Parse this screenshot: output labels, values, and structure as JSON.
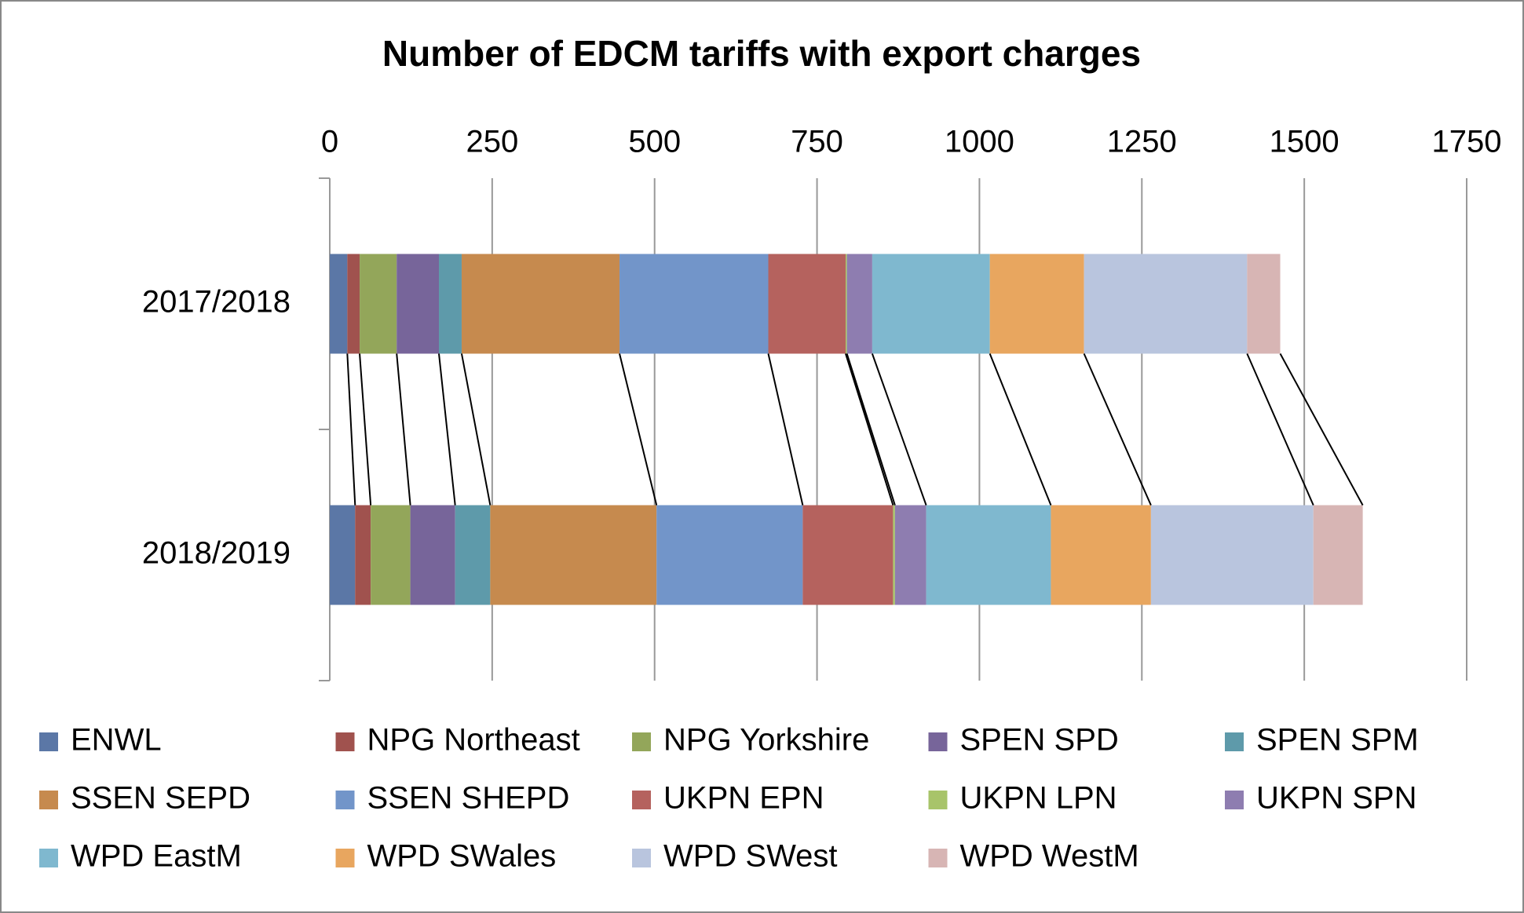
{
  "chart_data": {
    "type": "stacked-bar-horizontal",
    "title": "Number of EDCM tariffs with export charges",
    "categories": [
      "2017/2018",
      "2018/2019"
    ],
    "xlim": [
      0,
      1750
    ],
    "xticks": [
      0,
      250,
      500,
      750,
      1000,
      1250,
      1500,
      1750
    ],
    "grid": true,
    "series_lines": true,
    "legend": "bottom",
    "series": [
      {
        "name": "ENWL",
        "color": "#5b77a6",
        "values": [
          27,
          39
        ]
      },
      {
        "name": "NPG Northeast",
        "color": "#a0524e",
        "values": [
          19,
          24
        ]
      },
      {
        "name": "NPG Yorkshire",
        "color": "#93a65a",
        "values": [
          57,
          61
        ]
      },
      {
        "name": "SPEN SPD",
        "color": "#77659a",
        "values": [
          65,
          69
        ]
      },
      {
        "name": "SPEN SPM",
        "color": "#5e9aaa",
        "values": [
          35,
          54
        ]
      },
      {
        "name": "SSEN SEPD",
        "color": "#c68a4e",
        "values": [
          243,
          256
        ]
      },
      {
        "name": "SSEN SHEPD",
        "color": "#7295c9",
        "values": [
          229,
          225
        ]
      },
      {
        "name": "UKPN EPN",
        "color": "#b5625e",
        "values": [
          119,
          139
        ]
      },
      {
        "name": "UKPN LPN",
        "color": "#a8c46a",
        "values": [
          2,
          3
        ]
      },
      {
        "name": "UKPN SPN",
        "color": "#8e7db0",
        "values": [
          39,
          48
        ]
      },
      {
        "name": "WPD EastM",
        "color": "#7fb8cf",
        "values": [
          181,
          192
        ]
      },
      {
        "name": "WPD SWales",
        "color": "#e8a65f",
        "values": [
          145,
          154
        ]
      },
      {
        "name": "WPD SWest",
        "color": "#b9c5de",
        "values": [
          251,
          250
        ]
      },
      {
        "name": "WPD WestM",
        "color": "#d7b5b4",
        "values": [
          51,
          76
        ]
      }
    ]
  }
}
